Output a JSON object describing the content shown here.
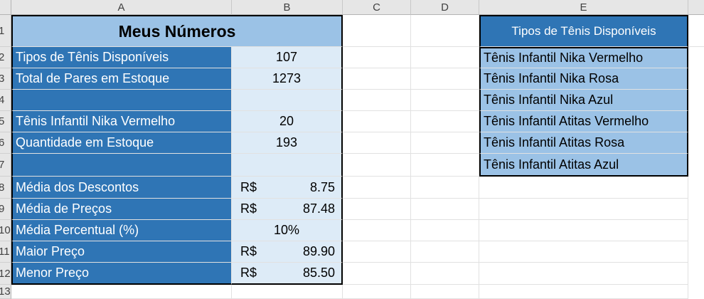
{
  "columns": [
    "A",
    "B",
    "C",
    "D",
    "E"
  ],
  "rows": [
    "1",
    "2",
    "3",
    "4",
    "5",
    "6",
    "7",
    "8",
    "9",
    "10",
    "11",
    "12",
    "13"
  ],
  "summary": {
    "title": "Meus Números",
    "rows": [
      {
        "label": "Tipos de Tênis Disponíveis",
        "value": "107"
      },
      {
        "label": "Total de Pares em Estoque",
        "value": "1273"
      },
      {
        "label": "",
        "value": ""
      },
      {
        "label": "Tênis Infantil Nika Vermelho",
        "value": "20"
      },
      {
        "label": "Quantidade em Estoque",
        "value": "193"
      },
      {
        "label": "",
        "value": ""
      },
      {
        "label": "Média dos Descontos",
        "currency": "R$",
        "value": "8.75"
      },
      {
        "label": "Média de Preços",
        "currency": "R$",
        "value": "87.48"
      },
      {
        "label": "Média Percentual (%)",
        "value": "10%"
      },
      {
        "label": "Maior Preço",
        "currency": "R$",
        "value": "89.90"
      },
      {
        "label": "Menor Preço",
        "currency": "R$",
        "value": "85.50"
      }
    ]
  },
  "types_list": {
    "header": "Tipos de Tênis Disponíveis",
    "items": [
      "Tênis Infantil Nika Vermelho",
      "Tênis Infantil Nika Rosa",
      "Tênis Infantil Nika Azul",
      "Tênis Infantil Atitas Vermelho",
      "Tênis Infantil Atitas Rosa",
      "Tênis Infantil Atitas Azul"
    ]
  },
  "colors": {
    "dark_blue": "#2f75b5",
    "light_blue": "#ddebf7",
    "mid_blue": "#9bc2e6"
  }
}
